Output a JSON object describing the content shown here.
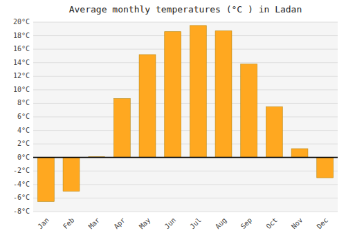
{
  "chart_data": {
    "type": "bar",
    "title": "Average monthly temperatures (°C ) in Ladan",
    "categories": [
      "Jan",
      "Feb",
      "Mar",
      "Apr",
      "May",
      "Jun",
      "Jul",
      "Aug",
      "Sep",
      "Oct",
      "Nov",
      "Dec"
    ],
    "values": [
      -6.5,
      -5.0,
      0.1,
      8.7,
      15.2,
      18.6,
      19.5,
      18.7,
      13.8,
      7.5,
      1.3,
      -3.0
    ],
    "color": "#FFA820",
    "ylim": [
      -8,
      20
    ],
    "yticks": [
      {
        "value": -8,
        "label": "-8°C"
      },
      {
        "value": -6,
        "label": "-6°C"
      },
      {
        "value": -4,
        "label": "-4°C"
      },
      {
        "value": -2,
        "label": "-2°C"
      },
      {
        "value": 0,
        "label": "0°C"
      },
      {
        "value": 2,
        "label": "2°C"
      },
      {
        "value": 4,
        "label": "4°C"
      },
      {
        "value": 6,
        "label": "6°C"
      },
      {
        "value": 8,
        "label": "8°C"
      },
      {
        "value": 10,
        "label": "10°C"
      },
      {
        "value": 12,
        "label": "12°C"
      },
      {
        "value": 14,
        "label": "14°C"
      },
      {
        "value": 16,
        "label": "16°C"
      },
      {
        "value": 18,
        "label": "18°C"
      },
      {
        "value": 20,
        "label": "20°C"
      }
    ],
    "grid": true
  }
}
